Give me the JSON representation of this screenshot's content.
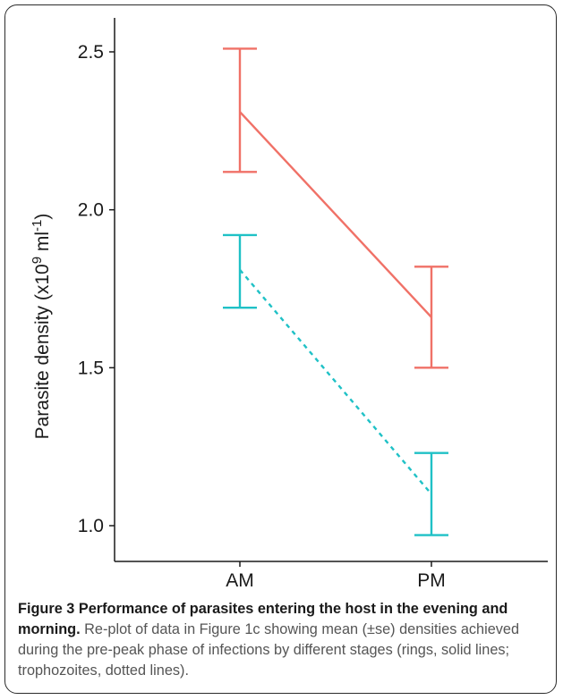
{
  "chart_data": {
    "type": "line",
    "categories": [
      "AM",
      "PM"
    ],
    "ylabel": "Parasite density (x10",
    "ylabel_sup1": "9",
    "ylabel_mid": " ml",
    "ylabel_sup2": "-1",
    "ylabel_end": ")",
    "ylim": [
      0.92,
      2.6
    ],
    "yticks": [
      1.0,
      1.5,
      2.0,
      2.5
    ],
    "ytick_labels": [
      "1.0",
      "1.5",
      "2.0",
      "2.5"
    ],
    "grid": false,
    "series": [
      {
        "values": [
          2.31,
          1.66
        ],
        "err_low": [
          2.12,
          1.5
        ],
        "err_high": [
          2.51,
          1.82
        ],
        "color": "#f07167",
        "linestyle": "solid"
      },
      {
        "values": [
          1.81,
          1.1
        ],
        "err_low": [
          1.69,
          0.97
        ],
        "err_high": [
          1.92,
          1.23
        ],
        "color": "#1fc1c6",
        "linestyle": "dotted"
      }
    ]
  },
  "caption": {
    "title": "Figure 3 Performance of parasites entering the host in the evening and morning.",
    "text": " Re-plot of data in Figure 1c showing mean (±se) densities achieved during the pre-peak phase of infections by different stages (rings, solid lines; trophozoites, dotted lines)."
  }
}
